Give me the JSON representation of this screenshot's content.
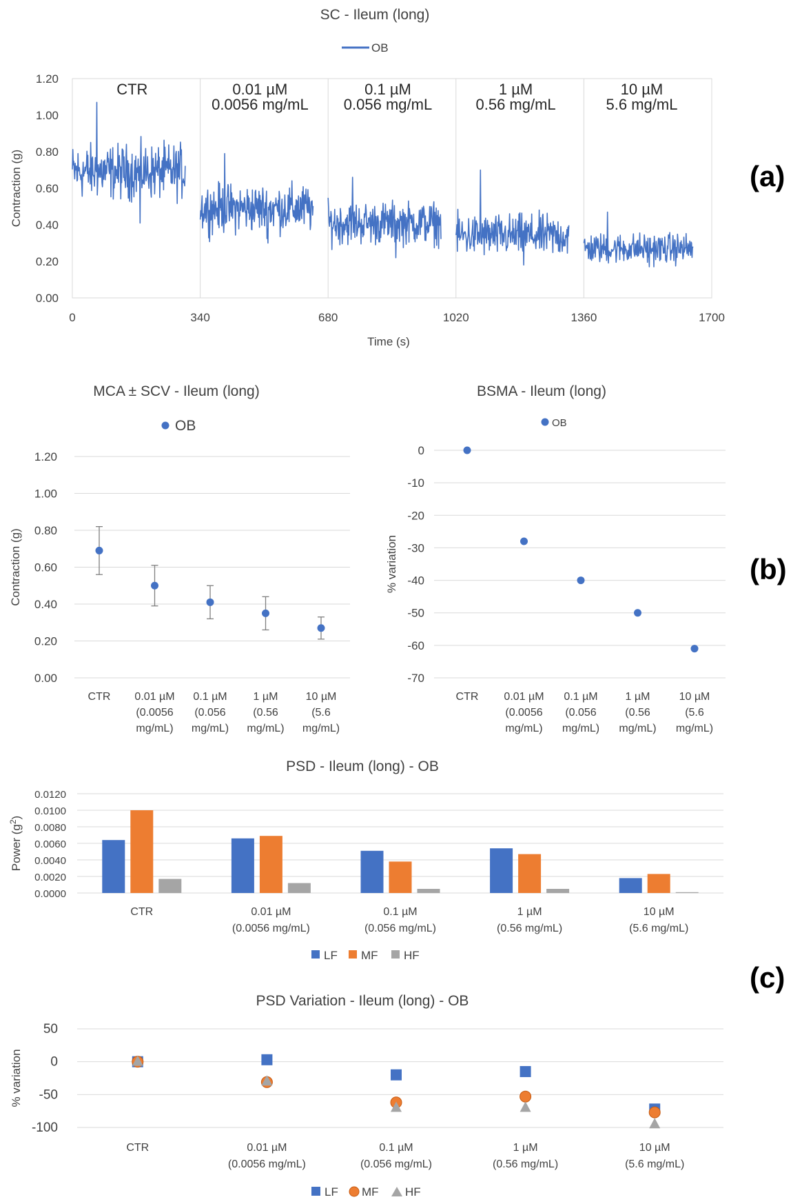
{
  "panel_labels": {
    "a": "(a)",
    "b": "(b)",
    "c": "(c)"
  },
  "colors": {
    "blue": "#4472c4",
    "orange": "#ed7d31",
    "gray": "#a5a5a5",
    "errbar": "#7f7f7f"
  },
  "chart_data": [
    {
      "id": "sc",
      "type": "line",
      "title": "SC - Ileum (long)",
      "legend": [
        "OB"
      ],
      "xlabel": "Time (s)",
      "ylabel": "Contraction (g)",
      "xlim": [
        0,
        1700
      ],
      "ylim": [
        0,
        1.2
      ],
      "x_ticks": [
        0,
        340,
        680,
        1020,
        1360,
        1700
      ],
      "y_ticks": [
        "0.00",
        "0.20",
        "0.40",
        "0.60",
        "0.80",
        "1.00",
        "1.20"
      ],
      "segments": [
        {
          "label_line1": "CTR",
          "label_line2": "",
          "start": 0,
          "end": 300,
          "mean": 0.69,
          "sd": 0.09,
          "min": 0.41,
          "max": 1.07
        },
        {
          "label_line1": "0.01 µM",
          "label_line2": "0.0056 mg/mL",
          "start": 340,
          "end": 640,
          "mean": 0.49,
          "sd": 0.08,
          "min": 0.3,
          "max": 0.79
        },
        {
          "label_line1": "0.1 µM",
          "label_line2": "0.056 mg/mL",
          "start": 680,
          "end": 980,
          "mean": 0.41,
          "sd": 0.07,
          "min": 0.22,
          "max": 0.66
        },
        {
          "label_line1": "1 µM",
          "label_line2": "0.56 mg/mL",
          "start": 1020,
          "end": 1320,
          "mean": 0.34,
          "sd": 0.07,
          "min": 0.18,
          "max": 0.7
        },
        {
          "label_line1": "10 µM",
          "label_line2": "5.6 mg/mL",
          "start": 1360,
          "end": 1650,
          "mean": 0.27,
          "sd": 0.05,
          "min": 0.17,
          "max": 0.47
        }
      ]
    },
    {
      "id": "mca",
      "type": "scatter",
      "title": "MCA ± SCV - Ileum (long)",
      "legend": [
        "OB"
      ],
      "ylabel": "Contraction (g)",
      "ylim": [
        0,
        1.2
      ],
      "y_ticks": [
        "0.00",
        "0.20",
        "0.40",
        "0.60",
        "0.80",
        "1.00",
        "1.20"
      ],
      "categories": [
        [
          "CTR"
        ],
        [
          "0.01 µM",
          "(0.0056",
          "mg/mL)"
        ],
        [
          "0.1 µM",
          "(0.056",
          "mg/mL)"
        ],
        [
          "1 µM",
          "(0.56",
          "mg/mL)"
        ],
        [
          "10 µM",
          "(5.6",
          "mg/mL)"
        ]
      ],
      "values": [
        0.69,
        0.5,
        0.41,
        0.35,
        0.27
      ],
      "errors": [
        0.13,
        0.11,
        0.09,
        0.09,
        0.06
      ]
    },
    {
      "id": "bsma",
      "type": "scatter",
      "title": "BSMA - Ileum (long)",
      "legend": [
        "OB"
      ],
      "ylabel": "% variation",
      "ylim": [
        -70,
        0
      ],
      "y_ticks": [
        "-70",
        "-60",
        "-50",
        "-40",
        "-30",
        "-20",
        "-10",
        "0"
      ],
      "categories": [
        [
          "CTR"
        ],
        [
          "0.01 µM",
          "(0.0056",
          "mg/mL)"
        ],
        [
          "0.1 µM",
          "(0.056",
          "mg/mL)"
        ],
        [
          "1 µM",
          "(0.56",
          "mg/mL)"
        ],
        [
          "10 µM",
          "(5.6",
          "mg/mL)"
        ]
      ],
      "values": [
        0,
        -28,
        -40,
        -50,
        -61
      ]
    },
    {
      "id": "psd",
      "type": "bar",
      "title": "PSD - Ileum  (long) - OB",
      "ylabel_main": "Power (g",
      "ylabel_sup": "2",
      "ylabel_end": ")",
      "ylim": [
        0,
        0.012
      ],
      "y_ticks": [
        "0.0000",
        "0.0020",
        "0.0040",
        "0.0060",
        "0.0080",
        "0.0100",
        "0.0120"
      ],
      "categories": [
        [
          "CTR"
        ],
        [
          "0.01 µM",
          "(0.0056 mg/mL)"
        ],
        [
          "0.1 µM",
          "(0.056 mg/mL)"
        ],
        [
          "1 µM",
          "(0.56 mg/mL)"
        ],
        [
          "10 µM",
          "(5.6 mg/mL)"
        ]
      ],
      "series": [
        {
          "name": "LF",
          "values": [
            0.0064,
            0.0066,
            0.0051,
            0.0054,
            0.0018
          ]
        },
        {
          "name": "MF",
          "values": [
            0.01,
            0.0069,
            0.0038,
            0.0047,
            0.0023
          ]
        },
        {
          "name": "HF",
          "values": [
            0.0017,
            0.0012,
            0.0005,
            0.0005,
            0.0001
          ]
        }
      ]
    },
    {
      "id": "psdvar",
      "type": "scatter",
      "title": "PSD Variation - Ileum (long) - OB",
      "ylabel": "% variation",
      "ylim": [
        -100,
        50
      ],
      "y_ticks": [
        "-100",
        "-50",
        "0",
        "50"
      ],
      "categories": [
        [
          "CTR"
        ],
        [
          "0.01 µM",
          "(0.0056 mg/mL)"
        ],
        [
          "0.1 µM",
          "(0.056 mg/mL)"
        ],
        [
          "1 µM",
          "(0.56 mg/mL)"
        ],
        [
          "10 µM",
          "(5.6 mg/mL)"
        ]
      ],
      "series": [
        {
          "name": "LF",
          "marker": "square",
          "values": [
            0,
            3,
            -20,
            -15,
            -72
          ]
        },
        {
          "name": "MF",
          "marker": "circle",
          "values": [
            0,
            -31,
            -62,
            -53,
            -77
          ]
        },
        {
          "name": "HF",
          "marker": "triangle",
          "values": [
            0,
            -30,
            -70,
            -70,
            -95
          ]
        }
      ]
    }
  ]
}
